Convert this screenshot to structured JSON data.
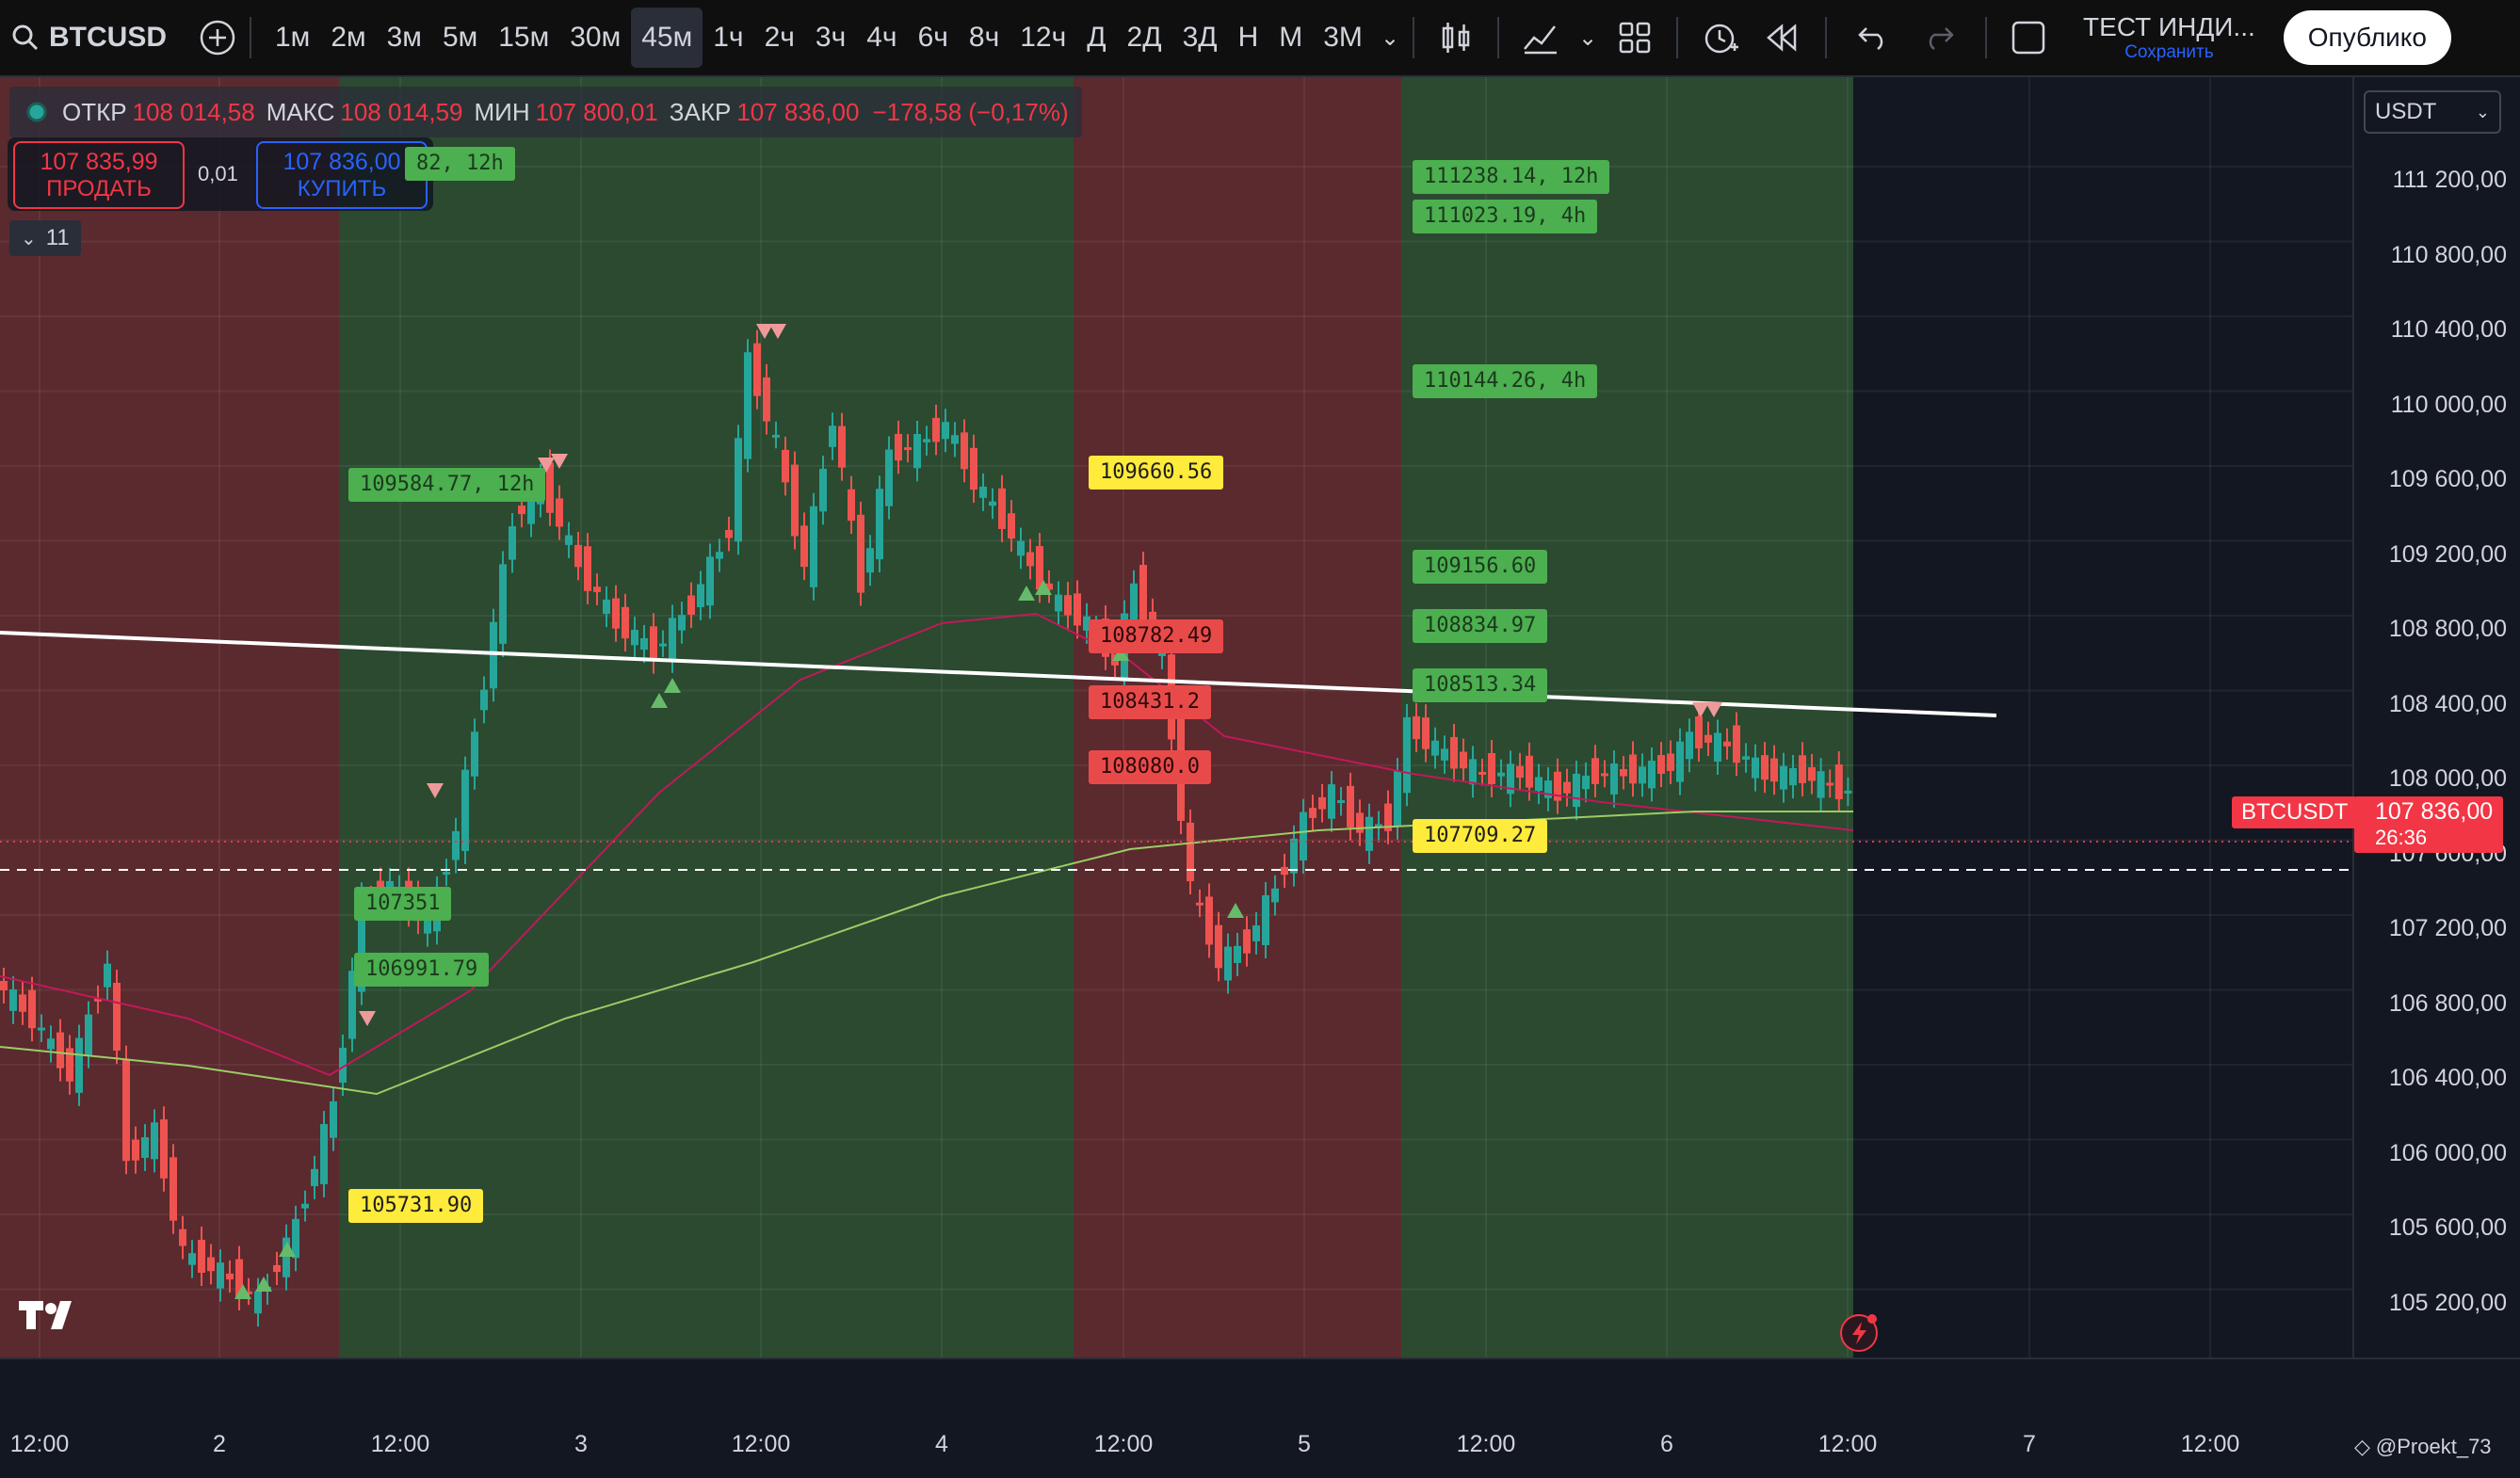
{
  "toolbar": {
    "symbol": "BTCUSD",
    "intervals": [
      "1м",
      "2м",
      "3м",
      "5м",
      "15м",
      "30м",
      "45м",
      "1ч",
      "2ч",
      "3ч",
      "4ч",
      "6ч",
      "8ч",
      "12ч",
      "Д",
      "2Д",
      "3Д",
      "Н",
      "М",
      "3М"
    ],
    "active_interval": "45м",
    "layout_name": "ТЕСТ ИНДИ...",
    "save_label": "Сохранить",
    "publish_label": "Опублико"
  },
  "legend": {
    "open_label": "ОТКР",
    "open": "108 014,58",
    "high_label": "МАКС",
    "high": "108 014,59",
    "low_label": "МИН",
    "low": "107 800,01",
    "close_label": "ЗАКР",
    "close": "107 836,00",
    "change": "−178,58 (−0,17%)"
  },
  "trade": {
    "sell_price": "107 835,99",
    "sell_label": "ПРОДАТЬ",
    "spread": "0,01",
    "buy_price": "107 836,00",
    "buy_label": "КУПИТЬ"
  },
  "indicators_count": "11",
  "currency": "USDT",
  "price_axis": [
    "111 200,00",
    "110 800,00",
    "110 400,00",
    "110 000,00",
    "109 600,00",
    "109 200,00",
    "108 800,00",
    "108 400,00",
    "108 000,00",
    "107 600,00",
    "107 200,00",
    "106 800,00",
    "106 400,00",
    "106 000,00",
    "105 600,00",
    "105 200,00"
  ],
  "time_axis": [
    "12:00",
    "2",
    "12:00",
    "3",
    "12:00",
    "4",
    "12:00",
    "5",
    "12:00",
    "6",
    "12:00",
    "7",
    "12:00"
  ],
  "current_price": {
    "symbol": "BTCUSDT",
    "price": "107 836,00",
    "countdown": "26:36"
  },
  "level_labels": [
    {
      "text": "111238.14, 12h"
    },
    {
      "text": "111023.19, 4h"
    },
    {
      "text": "110144.26, 4h"
    },
    {
      "text": "109584.77, 12h"
    },
    {
      "text": "109660.56"
    },
    {
      "text": "109156.60"
    },
    {
      "text": "108834.97"
    },
    {
      "text": "108513.34"
    },
    {
      "text": "108782.49"
    },
    {
      "text": "108431.2"
    },
    {
      "text": "108080.0"
    },
    {
      "text": "107709.27"
    },
    {
      "text": "107351"
    },
    {
      "text": "106991.79"
    },
    {
      "text": "105731.90"
    },
    {
      "text": "82, 12h"
    }
  ],
  "watermark": "@Proekt_73",
  "colors": {
    "up": "#26a69a",
    "down": "#ef5350",
    "bg": "#131722",
    "green_zone": "#2b4a30",
    "red_zone": "#5a2a2e"
  }
}
